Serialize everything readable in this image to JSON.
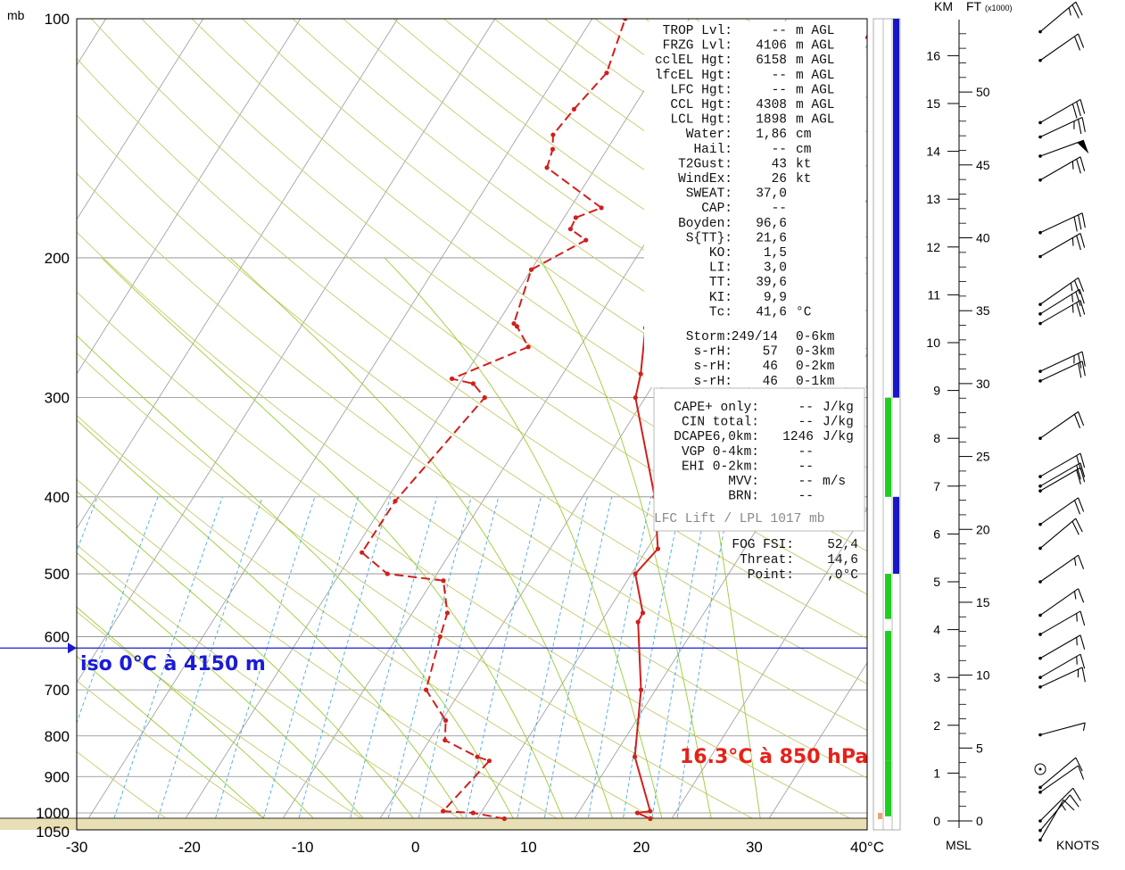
{
  "chart_data": {
    "type": "line",
    "chart_kind": "skew-t log-p sounding",
    "pressure_unit": "mb",
    "temperature_unit": "°C",
    "p_ticks": [
      {
        "p": 100,
        "label": "100"
      },
      {
        "p": 200,
        "label": "200"
      },
      {
        "p": 300,
        "label": "300"
      },
      {
        "p": 400,
        "label": "400"
      },
      {
        "p": 500,
        "label": "500"
      },
      {
        "p": 600,
        "label": "600"
      },
      {
        "p": 700,
        "label": "700"
      },
      {
        "p": 800,
        "label": "800"
      },
      {
        "p": 900,
        "label": "900"
      },
      {
        "p": 1000,
        "label": "1000"
      },
      {
        "p": 1050,
        "label": "1050"
      }
    ],
    "t_ticks": [
      {
        "t": -30,
        "label": "-30"
      },
      {
        "t": -20,
        "label": "-20"
      },
      {
        "t": -10,
        "label": "-10"
      },
      {
        "t": 0,
        "label": "0"
      },
      {
        "t": 10,
        "label": "10"
      },
      {
        "t": 20,
        "label": "20"
      },
      {
        "t": 30,
        "label": "30"
      },
      {
        "t": 40,
        "label": "40°C"
      }
    ],
    "xlim": [
      -30,
      40
    ],
    "ylim": [
      1050,
      100
    ],
    "series": [
      {
        "kind": "temperature",
        "style": "solid",
        "color": "#d0201c",
        "points": [
          [
            1017,
            27.8
          ],
          [
            1000,
            26.1
          ],
          [
            995,
            27.3
          ],
          [
            850,
            22.2
          ],
          [
            700,
            18.5
          ],
          [
            575,
            13.8
          ],
          [
            560,
            13.7
          ],
          [
            500,
            10.4
          ],
          [
            465,
            11.1
          ],
          [
            400,
            7.4
          ],
          [
            300,
            -1.0
          ],
          [
            280,
            -2.0
          ],
          [
            245,
            -4.5
          ],
          [
            208,
            -8.0
          ],
          [
            177,
            -10.6
          ],
          [
            171,
            -10.8
          ],
          [
            160,
            -7.5
          ],
          [
            148,
            -7.0
          ],
          [
            137,
            -4.5
          ],
          [
            122,
            -1.2
          ],
          [
            100,
            -0.4
          ]
        ]
      },
      {
        "kind": "dewpoint",
        "style": "dashed",
        "color": "#d0201c",
        "points": [
          [
            1017,
            12.8
          ],
          [
            1000,
            9.2
          ],
          [
            995,
            6.0
          ],
          [
            860,
            7.5
          ],
          [
            850,
            6.0
          ],
          [
            810,
            1.6
          ],
          [
            765,
            0.4
          ],
          [
            700,
            -3.6
          ],
          [
            600,
            -5.6
          ],
          [
            560,
            -6.4
          ],
          [
            510,
            -8.9
          ],
          [
            500,
            -15.1
          ],
          [
            470,
            -19.1
          ],
          [
            405,
            -19.0
          ],
          [
            300,
            -16.5
          ],
          [
            288,
            -18.6
          ],
          [
            284,
            -21.1
          ],
          [
            259,
            -15.3
          ],
          [
            244,
            -17.8
          ],
          [
            242,
            -18.3
          ],
          [
            207,
            -20.0
          ],
          [
            190,
            -16.3
          ],
          [
            184,
            -18.6
          ],
          [
            178,
            -18.8
          ],
          [
            173,
            -16.8
          ],
          [
            154,
            -25.0
          ],
          [
            146,
            -25.6
          ],
          [
            140,
            -26.5
          ],
          [
            130,
            -26.0
          ],
          [
            117,
            -25.0
          ],
          [
            100,
            -26.6
          ]
        ]
      }
    ],
    "freezing_level_line": {
      "p": 620,
      "color": "#1a1acd"
    },
    "annotations": {
      "iso0": "iso 0°C à 4150 m",
      "t850": "16.3°C à 850 hPa"
    },
    "indices": [
      {
        "label": "TROP Lvl:",
        "value": "--",
        "unit": "m AGL"
      },
      {
        "label": "FRZG Lvl:",
        "value": "4106",
        "unit": "m AGL"
      },
      {
        "label": "cclEL Hgt:",
        "value": "6158",
        "unit": "m AGL"
      },
      {
        "label": "lfcEL Hgt:",
        "value": "--",
        "unit": "m AGL"
      },
      {
        "label": "LFC Hgt:",
        "value": "--",
        "unit": "m AGL"
      },
      {
        "label": "CCL Hgt:",
        "value": "4308",
        "unit": "m AGL"
      },
      {
        "label": "LCL Hgt:",
        "value": "1898",
        "unit": "m AGL"
      },
      {
        "label": "Water:",
        "value": "1,86",
        "unit": "cm"
      },
      {
        "label": "Hail:",
        "value": "--",
        "unit": "cm"
      },
      {
        "label": "T2Gust:",
        "value": "43",
        "unit": "kt"
      },
      {
        "label": "WindEx:",
        "value": "26",
        "unit": "kt"
      },
      {
        "label": "SWEAT:",
        "value": "37,0",
        "unit": ""
      },
      {
        "label": "CAP:",
        "value": "--",
        "unit": ""
      },
      {
        "label": "Boyden:",
        "value": "96,6",
        "unit": ""
      },
      {
        "label": "S{TT}:",
        "value": "21,6",
        "unit": ""
      },
      {
        "label": "KO:",
        "value": "1,5",
        "unit": ""
      },
      {
        "label": "LI:",
        "value": "3,0",
        "unit": ""
      },
      {
        "label": "TT:",
        "value": "39,6",
        "unit": ""
      },
      {
        "label": "KI:",
        "value": "9,9",
        "unit": ""
      },
      {
        "label": "Tc:",
        "value": "41,6",
        "unit": "°C"
      }
    ],
    "storm_lines": [
      {
        "label": "Storm:",
        "value": "249/14",
        "unit": "0-6km"
      },
      {
        "label": "s-rH:",
        "value": "57",
        "unit": "0-3km"
      },
      {
        "label": "s-rH:",
        "value": "46",
        "unit": "0-2km"
      },
      {
        "label": "s-rH:",
        "value": "46",
        "unit": "0-1km"
      }
    ],
    "cape_lines": [
      {
        "label": "CAPE+ only:",
        "value": "--",
        "unit": "J/kg"
      },
      {
        "label": "CIN total:",
        "value": "--",
        "unit": "J/kg"
      },
      {
        "label": "DCAPE6,0km:",
        "value": "1246",
        "unit": "J/kg"
      },
      {
        "label": "VGP 0-4km:",
        "value": "--",
        "unit": ""
      },
      {
        "label": "EHI 0-2km:",
        "value": "--",
        "unit": ""
      },
      {
        "label": "MVV:",
        "value": "--",
        "unit": "m/s"
      },
      {
        "label": "BRN:",
        "value": "--",
        "unit": ""
      }
    ],
    "lift_note": "LFC Lift / LPL 1017 mb",
    "fog_lines": [
      {
        "label": "FOG FSI:",
        "value": "52,4"
      },
      {
        "label": "Threat:",
        "value": "14,6"
      },
      {
        "label": "Point:",
        "value": ",0°C"
      }
    ],
    "height_axis": {
      "km_title": "KM",
      "ft_title": "FT",
      "ft_unit": "(x1000)",
      "bottom_left": "MSL",
      "bottom_right": "KNOTS",
      "km_labels": [
        "0",
        "1",
        "2",
        "3",
        "4",
        "5",
        "6",
        "7",
        "8",
        "9",
        "10",
        "11",
        "12",
        "13",
        "14",
        "15",
        "16"
      ],
      "ft_labels": [
        "0",
        "5",
        "10",
        "15",
        "20",
        "25",
        "30",
        "35",
        "40",
        "45",
        "50"
      ]
    },
    "wind_barbs": [
      {
        "km": 16.5,
        "dir": 230,
        "kt": 25
      },
      {
        "km": 15.9,
        "dir": 235,
        "kt": 20
      },
      {
        "km": 14.6,
        "dir": 240,
        "kt": 30
      },
      {
        "km": 14.3,
        "dir": 245,
        "kt": 25
      },
      {
        "km": 13.9,
        "dir": 250,
        "kt": 50
      },
      {
        "km": 13.4,
        "dir": 240,
        "kt": 25
      },
      {
        "km": 12.3,
        "dir": 245,
        "kt": 30
      },
      {
        "km": 11.8,
        "dir": 240,
        "kt": 25
      },
      {
        "km": 10.8,
        "dir": 235,
        "kt": 25
      },
      {
        "km": 10.6,
        "dir": 238,
        "kt": 25
      },
      {
        "km": 10.4,
        "dir": 240,
        "kt": 25
      },
      {
        "km": 9.4,
        "dir": 245,
        "kt": 25
      },
      {
        "km": 9.2,
        "dir": 245,
        "kt": 20
      },
      {
        "km": 8.0,
        "dir": 235,
        "kt": 20
      },
      {
        "km": 7.2,
        "dir": 240,
        "kt": 20
      },
      {
        "km": 7.0,
        "dir": 240,
        "kt": 20
      },
      {
        "km": 6.9,
        "dir": 240,
        "kt": 20
      },
      {
        "km": 6.2,
        "dir": 235,
        "kt": 20
      },
      {
        "km": 5.7,
        "dir": 230,
        "kt": 20
      },
      {
        "km": 5.0,
        "dir": 235,
        "kt": 15
      },
      {
        "km": 4.3,
        "dir": 235,
        "kt": 15
      },
      {
        "km": 3.9,
        "dir": 240,
        "kt": 15
      },
      {
        "km": 3.4,
        "dir": 240,
        "kt": 15
      },
      {
        "km": 3.0,
        "dir": 240,
        "kt": 15
      },
      {
        "km": 2.8,
        "dir": 245,
        "kt": 15
      },
      {
        "km": 1.8,
        "dir": 255,
        "kt": 5
      },
      {
        "km": 0.7,
        "dir": 230,
        "kt": 10
      },
      {
        "km": 0.6,
        "dir": 235,
        "kt": 10
      },
      {
        "km": 0.0,
        "dir": 225,
        "kt": 10
      },
      {
        "km": -0.2,
        "dir": 220,
        "kt": 10
      },
      {
        "km": -0.4,
        "dir": 210,
        "kt": 15
      }
    ],
    "stability_bars": [
      {
        "from_mb": 100,
        "to_mb": 300,
        "color": "#1717c8",
        "col": "a"
      },
      {
        "from_mb": 300,
        "to_mb": 400,
        "color": "#22cc22",
        "col": "b"
      },
      {
        "from_mb": 400,
        "to_mb": 500,
        "color": "#1717c8",
        "col": "a"
      },
      {
        "from_mb": 500,
        "to_mb": 570,
        "color": "#22cc22",
        "col": "b"
      },
      {
        "from_mb": 590,
        "to_mb": 860,
        "color": "#22cc22",
        "col": "b"
      },
      {
        "from_mb": 860,
        "to_mb": 1010,
        "color": "#22cc22",
        "col": "b"
      }
    ]
  }
}
